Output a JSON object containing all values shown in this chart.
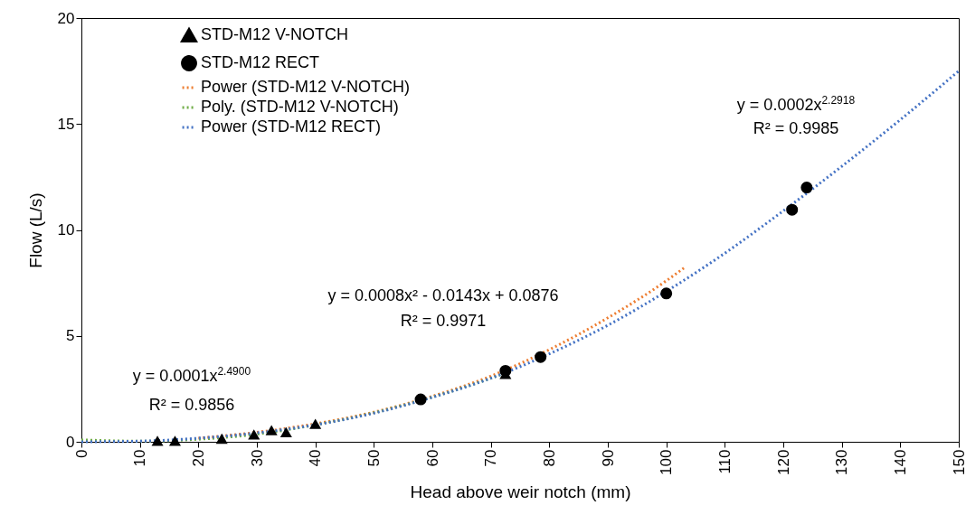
{
  "chart_data": {
    "type": "scatter",
    "xlabel": "Head above weir notch (mm)",
    "ylabel": "Flow (L/s)",
    "xlim": [
      0,
      150
    ],
    "xticks": [
      0,
      10,
      20,
      30,
      40,
      50,
      60,
      70,
      80,
      90,
      100,
      110,
      120,
      130,
      140,
      150
    ],
    "ylim": [
      0,
      20
    ],
    "yticks": [
      0,
      5,
      10,
      15,
      20
    ],
    "grid": false,
    "legend": "top left",
    "series": [
      {
        "name": "STD-M12 V-NOTCH",
        "marker": "triangle",
        "color": "#000000",
        "x": [
          13,
          16,
          24,
          29.5,
          32.5,
          35,
          40,
          72.5
        ],
        "values": [
          0.05,
          0.05,
          0.15,
          0.35,
          0.55,
          0.45,
          0.85,
          3.2
        ]
      },
      {
        "name": "STD-M12 RECT",
        "marker": "circle",
        "color": "#000000",
        "x": [
          58,
          72.5,
          78.5,
          100,
          121.5,
          124
        ],
        "values": [
          2.0,
          3.35,
          4.0,
          7.0,
          10.95,
          12.0
        ]
      },
      {
        "name": "Power (STD-M12 V-NOTCH)",
        "type": "line",
        "line_style": "dotted",
        "color": "#ed7d31",
        "x": [
          20,
          30,
          40,
          50,
          60,
          70,
          80,
          90,
          100,
          103
        ],
        "values": [
          0.17,
          0.45,
          0.85,
          1.4,
          2.15,
          3.1,
          4.35,
          5.85,
          7.6,
          8.2
        ]
      },
      {
        "name": "Poly. (STD-M12 V-NOTCH)",
        "type": "line",
        "line_style": "dotted",
        "color": "#70ad47",
        "x": [
          0,
          10,
          20,
          30,
          40,
          50,
          60,
          70,
          72
        ],
        "values": [
          0.09,
          0.03,
          0.12,
          0.36,
          0.8,
          1.37,
          2.11,
          3.0,
          3.2
        ]
      },
      {
        "name": "Power (STD-M12 RECT)",
        "type": "line",
        "line_style": "dotted",
        "color": "#4472c4",
        "x": [
          0,
          10,
          20,
          30,
          40,
          50,
          60,
          70,
          80,
          90,
          100,
          110,
          120,
          130,
          140,
          150
        ],
        "values": [
          0,
          0.03,
          0.17,
          0.42,
          0.8,
          1.35,
          2.1,
          3.0,
          4.15,
          5.5,
          7.1,
          8.9,
          10.9,
          13.0,
          15.2,
          17.5
        ]
      }
    ],
    "annotations": [
      "y = 0.0001x$^{2.4900}$",
      "R² = 0.9856",
      "y = 0.0008x² - 0.0143x + 0.0876",
      "R² = 0.9971",
      "y = 0.0002x$^{2.2918}$",
      "R² = 0.9985"
    ]
  }
}
